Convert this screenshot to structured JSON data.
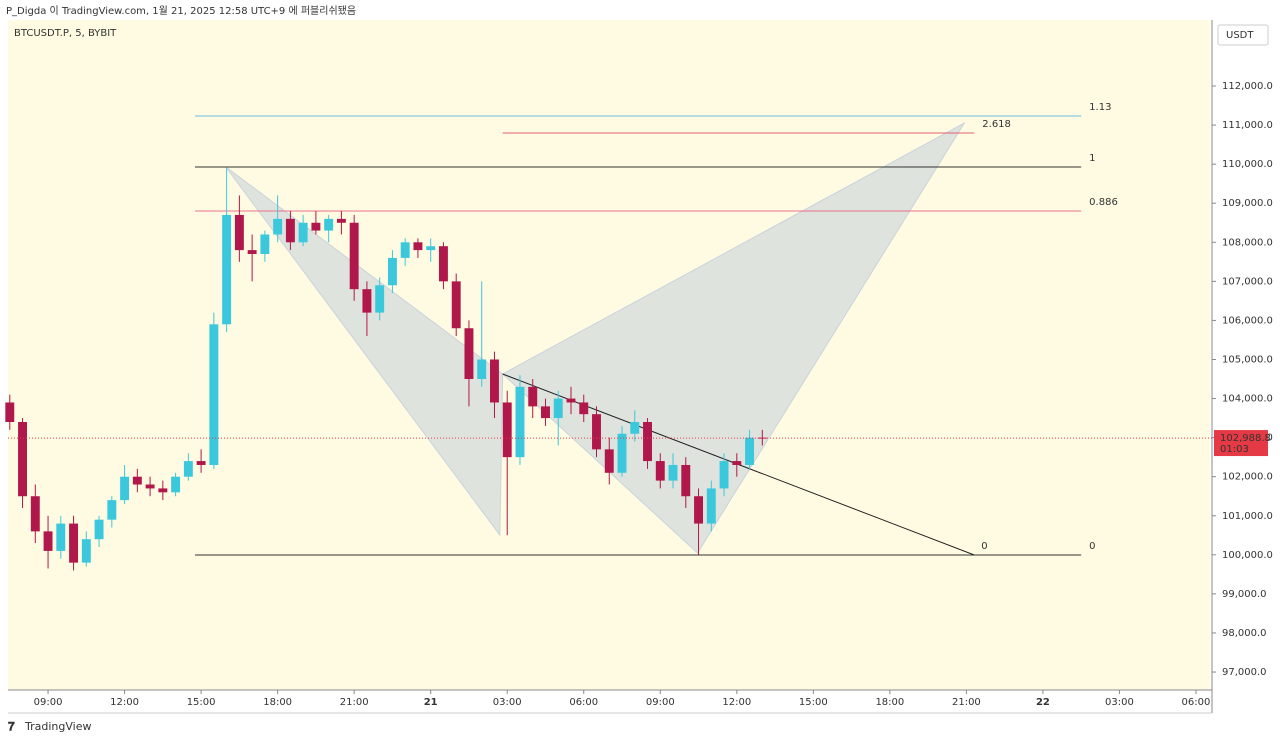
{
  "header": {
    "publisher": "P_Digda 이 TradingView.com, 1월 21, 2025 12:58 UTC+9 에 퍼블리쉬됐음",
    "symbol": "BTCUSDT.P, 5, BYBIT",
    "currency": "USDT",
    "brand": "TradingView"
  },
  "chart_data": {
    "type": "candlestick",
    "up_color": "#3cc8dc",
    "down_color": "#b0174a",
    "grid": false,
    "xlim": [
      7.43,
      54.55
    ],
    "ylim": [
      96540,
      113690
    ],
    "xticks": [
      {
        "value": 9,
        "label": "09:00"
      },
      {
        "value": 12,
        "label": "12:00"
      },
      {
        "value": 15,
        "label": "15:00"
      },
      {
        "value": 18,
        "label": "18:00"
      },
      {
        "value": 21,
        "label": "21:00"
      },
      {
        "value": 24,
        "label": "21"
      },
      {
        "value": 27,
        "label": "03:00"
      },
      {
        "value": 30,
        "label": "06:00"
      },
      {
        "value": 33,
        "label": "09:00"
      },
      {
        "value": 36,
        "label": "12:00"
      },
      {
        "value": 39,
        "label": "15:00"
      },
      {
        "value": 42,
        "label": "18:00"
      },
      {
        "value": 45,
        "label": "21:00"
      },
      {
        "value": 48,
        "label": "22"
      },
      {
        "value": 51,
        "label": "03:00"
      },
      {
        "value": 54,
        "label": "06:00"
      }
    ],
    "yticks": [
      {
        "value": 97000,
        "label": "97,000.0"
      },
      {
        "value": 98000,
        "label": "98,000.0"
      },
      {
        "value": 99000,
        "label": "99,000.0"
      },
      {
        "value": 100000,
        "label": "100,000.0"
      },
      {
        "value": 101000,
        "label": "101,000.0"
      },
      {
        "value": 102000,
        "label": "102,000.0"
      },
      {
        "value": 103000,
        "label": "103,000.0"
      },
      {
        "value": 104000,
        "label": "104,000.0"
      },
      {
        "value": 105000,
        "label": "105,000.0"
      },
      {
        "value": 106000,
        "label": "106,000.0"
      },
      {
        "value": 107000,
        "label": "107,000.0"
      },
      {
        "value": 108000,
        "label": "108,000.0"
      },
      {
        "value": 109000,
        "label": "109,000.0"
      },
      {
        "value": 110000,
        "label": "110,000.0"
      },
      {
        "value": 111000,
        "label": "111,000.0"
      },
      {
        "value": 112000,
        "label": "112,000.0"
      }
    ],
    "x": [
      7.5,
      8,
      8.5,
      9,
      9.5,
      10,
      10.5,
      11,
      11.5,
      12,
      12.5,
      13,
      13.5,
      14,
      14.5,
      15,
      15.5,
      16,
      16.5,
      17,
      17.5,
      18,
      18.5,
      19,
      19.5,
      20,
      20.5,
      21,
      21.5,
      22,
      22.5,
      23,
      23.5,
      24,
      24.5,
      25,
      25.5,
      26,
      26.5,
      27,
      27.5,
      28,
      28.5,
      29,
      29.5,
      30,
      30.5,
      31,
      31.5,
      32,
      32.5,
      33,
      33.5,
      34,
      34.5,
      35,
      35.5,
      36,
      36.5,
      37
    ],
    "candles": [
      [
        103900,
        104100,
        103200,
        103400
      ],
      [
        103400,
        103500,
        101200,
        101500
      ],
      [
        101500,
        101800,
        100300,
        100600
      ],
      [
        100600,
        101000,
        99650,
        100100
      ],
      [
        100100,
        101000,
        99900,
        100800
      ],
      [
        100800,
        101000,
        99600,
        99800
      ],
      [
        99800,
        100600,
        99700,
        100400
      ],
      [
        100400,
        101000,
        100200,
        100900
      ],
      [
        100900,
        101500,
        100700,
        101400
      ],
      [
        101400,
        102300,
        101300,
        102000
      ],
      [
        102000,
        102200,
        101600,
        101800
      ],
      [
        101800,
        102000,
        101500,
        101700
      ],
      [
        101700,
        101900,
        101400,
        101600
      ],
      [
        101600,
        102100,
        101500,
        102000
      ],
      [
        102000,
        102600,
        101900,
        102400
      ],
      [
        102400,
        102700,
        102100,
        102300
      ],
      [
        102300,
        106200,
        102200,
        105900
      ],
      [
        105900,
        109900,
        105700,
        108700
      ],
      [
        108700,
        109200,
        107500,
        107800
      ],
      [
        107800,
        108200,
        107000,
        107700
      ],
      [
        107700,
        108300,
        107500,
        108200
      ],
      [
        108200,
        109200,
        108000,
        108600
      ],
      [
        108600,
        108800,
        107800,
        108000
      ],
      [
        108000,
        108700,
        107900,
        108500
      ],
      [
        108500,
        108800,
        108200,
        108300
      ],
      [
        108300,
        108700,
        108000,
        108600
      ],
      [
        108600,
        108800,
        108200,
        108500
      ],
      [
        108500,
        108700,
        106500,
        106800
      ],
      [
        106800,
        107000,
        105600,
        106200
      ],
      [
        106200,
        107100,
        106000,
        106900
      ],
      [
        106900,
        107800,
        106700,
        107600
      ],
      [
        107600,
        108100,
        107400,
        108000
      ],
      [
        108000,
        108100,
        107600,
        107800
      ],
      [
        107800,
        108100,
        107500,
        107900
      ],
      [
        107900,
        108000,
        106800,
        107000
      ],
      [
        107000,
        107200,
        105600,
        105800
      ],
      [
        105800,
        106000,
        103800,
        104500
      ],
      [
        104500,
        107000,
        104300,
        105000
      ],
      [
        105000,
        105200,
        103500,
        103900
      ],
      [
        103900,
        104200,
        100500,
        102500
      ],
      [
        102500,
        104600,
        102300,
        104300
      ],
      [
        104300,
        104500,
        103500,
        103800
      ],
      [
        103800,
        104000,
        103300,
        103500
      ],
      [
        103500,
        104200,
        102800,
        104000
      ],
      [
        104000,
        104300,
        103600,
        103900
      ],
      [
        103900,
        104100,
        103400,
        103600
      ],
      [
        103600,
        103800,
        102500,
        102700
      ],
      [
        102700,
        103000,
        101800,
        102100
      ],
      [
        102100,
        103300,
        102000,
        103100
      ],
      [
        103100,
        103700,
        102900,
        103400
      ],
      [
        103400,
        103500,
        102200,
        102400
      ],
      [
        102400,
        102600,
        101700,
        101900
      ],
      [
        101900,
        102600,
        101700,
        102300
      ],
      [
        102300,
        102500,
        101200,
        101500
      ],
      [
        101500,
        101700,
        100000,
        100800
      ],
      [
        100800,
        101900,
        100600,
        101700
      ],
      [
        101700,
        102600,
        101500,
        102400
      ],
      [
        102400,
        102600,
        102000,
        102300
      ],
      [
        102300,
        103200,
        102200,
        103000
      ],
      [
        103000,
        103200,
        102800,
        102988.8
      ]
    ],
    "last_price": {
      "value": 102988.8,
      "label": "102,988.8"
    },
    "countdown": "01:03",
    "last_color": "#e53945",
    "levels": [
      {
        "label": "1.13",
        "price": 111232,
        "from": 14.76,
        "to": 49.5,
        "color": "#6bb8dc"
      },
      {
        "label": "2.618",
        "price": 110797,
        "from": 26.82,
        "to": 45.31,
        "color": "#e06070"
      },
      {
        "label": "1",
        "price": 109927,
        "from": 14.76,
        "to": 49.5,
        "color": "#333333"
      },
      {
        "label": "0.886",
        "price": 108800,
        "from": 14.76,
        "to": 49.5,
        "color": "#e8708a"
      },
      {
        "label": "0",
        "price": 99996,
        "from": 14.76,
        "to": 49.5,
        "color": "#333333"
      }
    ],
    "pattern": {
      "x": [
        15.97,
        26.71,
        26.82,
        34.46,
        44.92
      ],
      "y": [
        109927,
        100508,
        104629,
        100047,
        111053
      ],
      "color": "#c9d3dc"
    },
    "trendline": {
      "x": [
        26.82,
        45.31
      ],
      "y": [
        104629,
        99996
      ],
      "label": "0",
      "color": "#222222"
    }
  }
}
